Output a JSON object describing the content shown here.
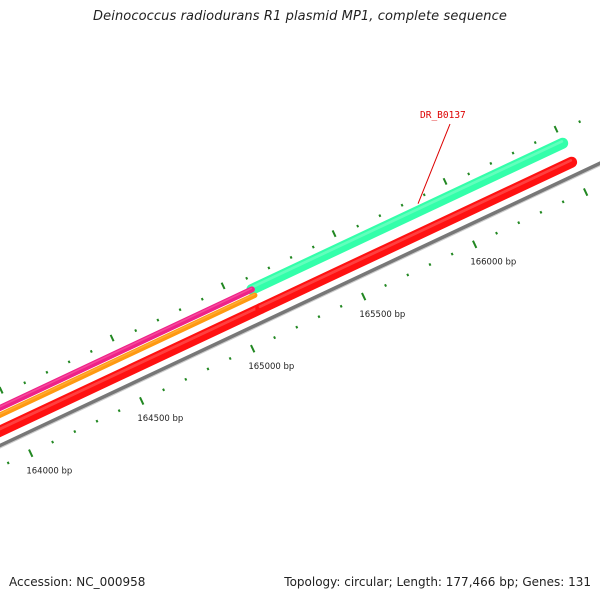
{
  "title": "Deinococcus radiodurans R1 plasmid MP1, complete sequence",
  "footer": {
    "accession": "Accession: NC_000958",
    "summary": "Topology: circular; Length: 177,466 bp; Genes: 131"
  },
  "gene_label": {
    "text": "DR_B0137",
    "color": "#dd0000"
  },
  "colors": {
    "forward_feature_green": "#33ffaa",
    "forward_feature_magenta": "#ee2288",
    "forward_feature_orange": "#ff9911",
    "reverse_feature_red": "#ff1111",
    "backbone": "#777777",
    "tick": "#228822"
  },
  "chart_data": {
    "type": "genome-map",
    "region_bp": [
      163900,
      166500
    ],
    "bp_labels": [
      {
        "bp": 164000,
        "text": "164000 bp"
      },
      {
        "bp": 164500,
        "text": "164500 bp"
      },
      {
        "bp": 165000,
        "text": "165000 bp"
      },
      {
        "bp": 165500,
        "text": "165500 bp"
      },
      {
        "bp": 166000,
        "text": "166000 bp"
      }
    ],
    "features": [
      {
        "track": "forward",
        "color": "#33ffaa",
        "start_bp": 165100,
        "end_bp": 166500,
        "name": "DR_B0137"
      },
      {
        "track": "forward",
        "color": "#ee2288",
        "start_bp": 163900,
        "end_bp": 165100
      },
      {
        "track": "forward-inner",
        "color": "#ff9911",
        "start_bp": 163900,
        "end_bp": 165100
      },
      {
        "track": "reverse",
        "color": "#ff1111",
        "start_bp": 163900,
        "end_bp": 165100
      },
      {
        "track": "reverse",
        "color": "#ff1111",
        "start_bp": 165100,
        "end_bp": 166500
      }
    ]
  }
}
